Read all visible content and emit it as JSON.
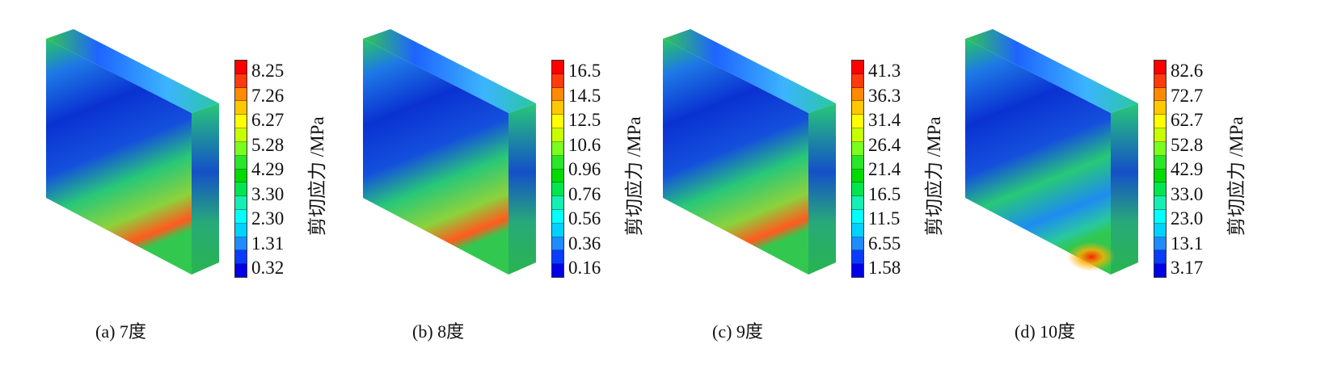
{
  "unit_label": "剪切应力 /MPa",
  "colormap": [
    "#ff0000",
    "#ff3a0c",
    "#ff8a00",
    "#ffc800",
    "#ffff00",
    "#c8ff00",
    "#78ff1e",
    "#28e628",
    "#00dc00",
    "#00e650",
    "#14f0b4",
    "#00ffff",
    "#00d2ff",
    "#1e8cff",
    "#0a3cff",
    "#0000e6"
  ],
  "panels": [
    {
      "caption": "(a)  7度",
      "ticks": [
        "8.25",
        "7.26",
        "6.27",
        "5.28",
        "4.29",
        "3.30",
        "2.30",
        "1.31",
        "0.32"
      ]
    },
    {
      "caption": "(b)  8度",
      "ticks": [
        "16.5",
        "14.5",
        "12.5",
        "10.6",
        "0.96",
        "0.76",
        "0.56",
        "0.36",
        "0.16"
      ]
    },
    {
      "caption": "(c) 9度",
      "ticks": [
        "41.3",
        "36.3",
        "31.4",
        "26.4",
        "21.4",
        "16.5",
        "11.5",
        "6.55",
        "1.58"
      ]
    },
    {
      "caption": "(d) 10度",
      "ticks": [
        "82.6",
        "72.7",
        "62.7",
        "52.8",
        "42.9",
        "33.0",
        "23.0",
        "13.1",
        "3.17"
      ]
    }
  ]
}
